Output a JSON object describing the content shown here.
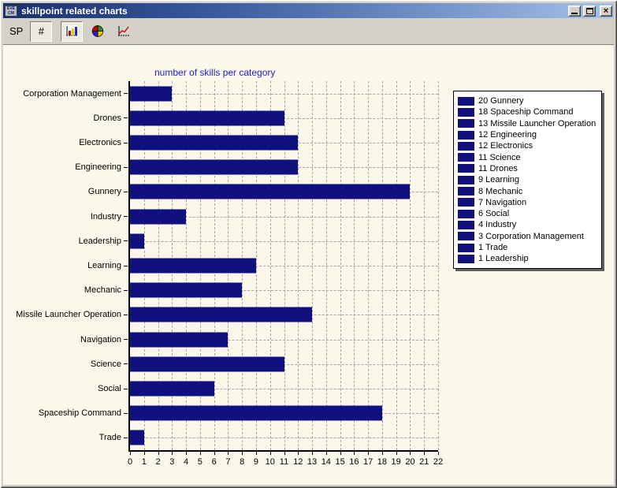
{
  "window": {
    "title": "skillpoint related charts",
    "icon": {
      "line1": "EVE",
      "line2": "CM"
    },
    "controls": {
      "minimize": "minimize",
      "maximize": "maximize",
      "close": "×"
    }
  },
  "toolbar": {
    "sp_label": "SP",
    "number_button_label": "#",
    "chart_type_buttons": [
      {
        "name": "bar-chart",
        "selected": true
      },
      {
        "name": "pie-chart",
        "selected": false
      },
      {
        "name": "line-chart",
        "selected": false
      }
    ]
  },
  "chart_data": {
    "type": "bar",
    "orientation": "horizontal",
    "title": "number of skills per category",
    "title_color": "#2222CC",
    "categories": [
      "Corporation Management",
      "Drones",
      "Electronics",
      "Engineering",
      "Gunnery",
      "Industry",
      "Leadership",
      "Learning",
      "Mechanic",
      "Missile Launcher Operation",
      "Navigation",
      "Science",
      "Social",
      "Spaceship Command",
      "Trade"
    ],
    "values": [
      3,
      11,
      12,
      12,
      20,
      4,
      1,
      9,
      8,
      13,
      7,
      11,
      6,
      18,
      1
    ],
    "xlabel": "",
    "ylabel": "",
    "xlim": [
      0,
      22
    ],
    "xticks": [
      0,
      1,
      2,
      3,
      4,
      5,
      6,
      7,
      8,
      9,
      10,
      11,
      12,
      13,
      14,
      15,
      16,
      17,
      18,
      19,
      20,
      21,
      22
    ],
    "grid": true,
    "bar_color": "#10107E",
    "legend_position": "right",
    "legend": [
      {
        "value": 20,
        "label": "Gunnery"
      },
      {
        "value": 18,
        "label": "Spaceship Command"
      },
      {
        "value": 13,
        "label": "Missile Launcher Operation"
      },
      {
        "value": 12,
        "label": "Engineering"
      },
      {
        "value": 12,
        "label": "Electronics"
      },
      {
        "value": 11,
        "label": "Science"
      },
      {
        "value": 11,
        "label": "Drones"
      },
      {
        "value": 9,
        "label": "Learning"
      },
      {
        "value": 8,
        "label": "Mechanic"
      },
      {
        "value": 7,
        "label": "Navigation"
      },
      {
        "value": 6,
        "label": "Social"
      },
      {
        "value": 4,
        "label": "Industry"
      },
      {
        "value": 3,
        "label": "Corporation Management"
      },
      {
        "value": 1,
        "label": "Trade"
      },
      {
        "value": 1,
        "label": "Leadership"
      }
    ]
  },
  "colors": {
    "titlebar_start": "#16306E",
    "titlebar_end": "#A3C2EA",
    "toolbar_bg": "#D4D0C8",
    "content_bg": "#FBF7EB",
    "bar": "#10107E",
    "grid": "#A6A6A6"
  }
}
